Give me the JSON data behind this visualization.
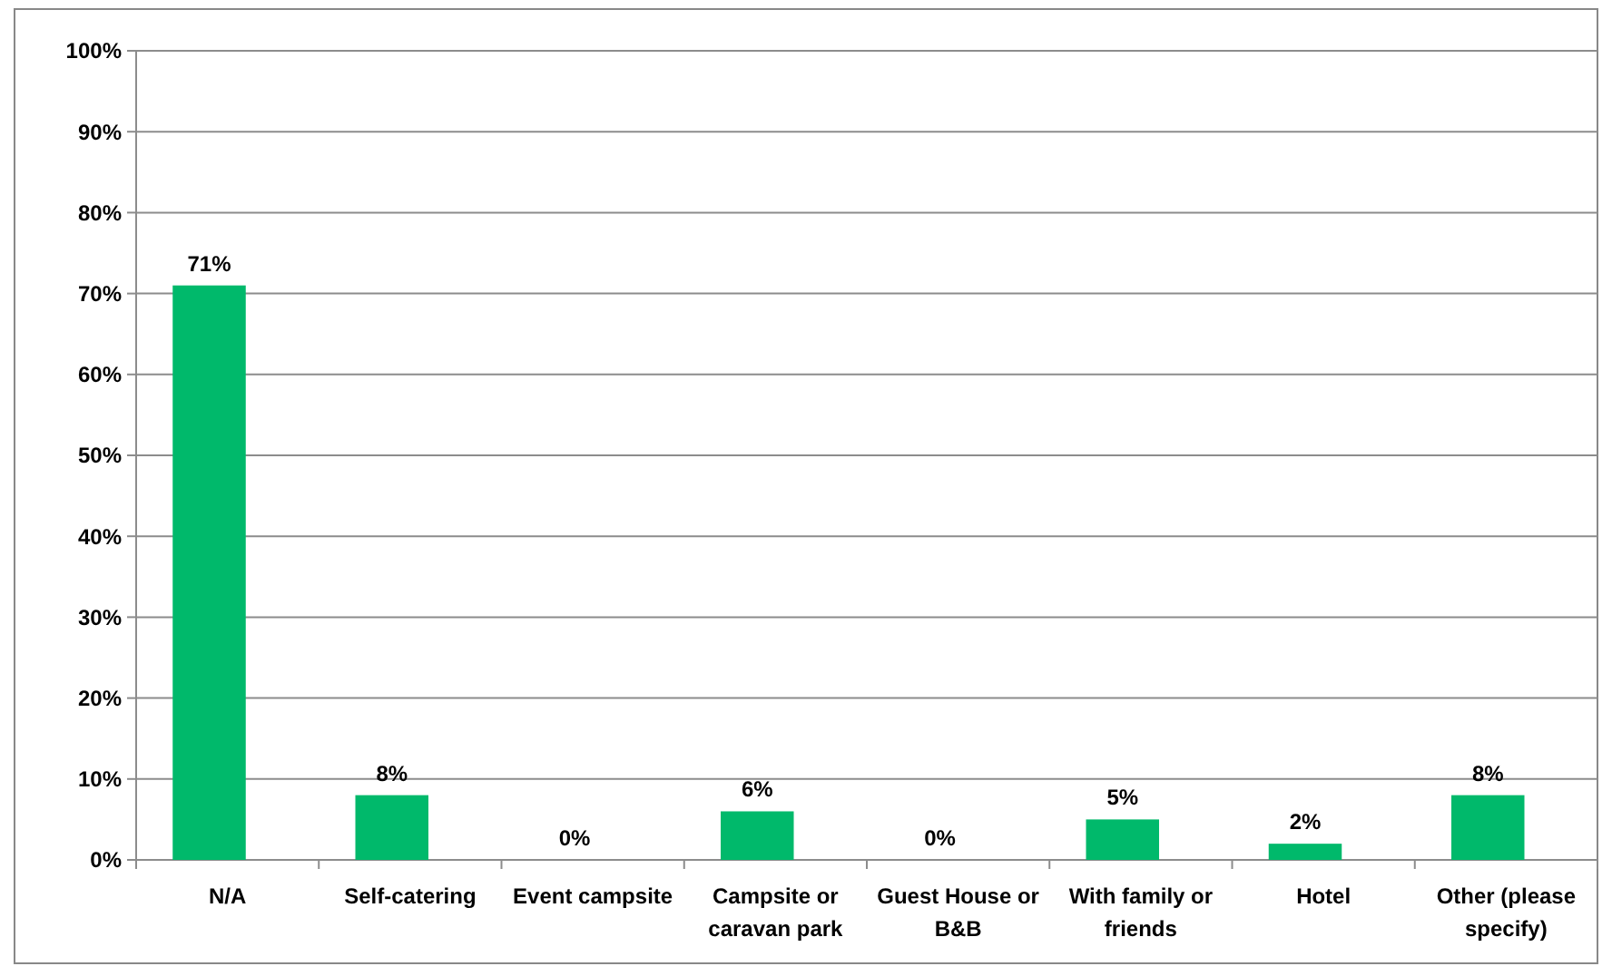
{
  "chart_data": {
    "type": "bar",
    "categories": [
      "N/A",
      "Self-catering",
      "Event campsite",
      "Campsite or caravan park",
      "Guest House or B&B",
      "With family or friends",
      "Hotel",
      "Other (please specify)"
    ],
    "values": [
      71,
      8,
      0,
      6,
      0,
      5,
      2,
      8
    ],
    "value_labels": [
      "71%",
      "8%",
      "0%",
      "6%",
      "0%",
      "5%",
      "2%",
      "8%"
    ],
    "color": "#00b96b",
    "ylim": [
      0,
      100
    ],
    "yticks": [
      {
        "value": 0,
        "label": "0%"
      },
      {
        "value": 10,
        "label": "10%"
      },
      {
        "value": 20,
        "label": "20%"
      },
      {
        "value": 30,
        "label": "30%"
      },
      {
        "value": 40,
        "label": "40%"
      },
      {
        "value": 50,
        "label": "50%"
      },
      {
        "value": 60,
        "label": "60%"
      },
      {
        "value": 70,
        "label": "70%"
      },
      {
        "value": 80,
        "label": "80%"
      },
      {
        "value": 90,
        "label": "90%"
      },
      {
        "value": 100,
        "label": "100%"
      }
    ],
    "grid": "y"
  }
}
